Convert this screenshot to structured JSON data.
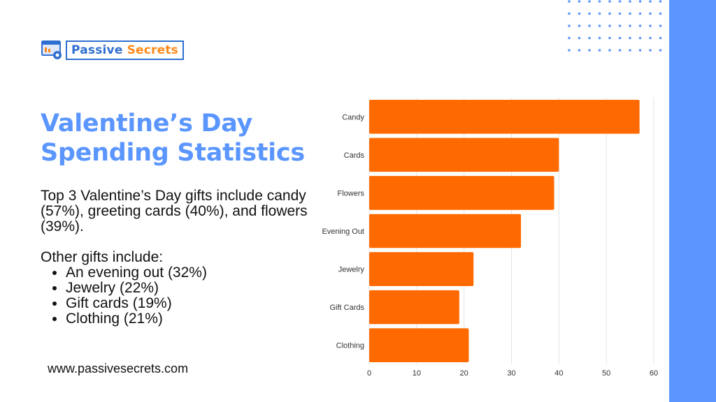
{
  "brand": {
    "name_part1": "Passive",
    "name_part2": "Secrets"
  },
  "title_line1": "Valentine’s Day",
  "title_line2": "Spending Statistics",
  "summary": "Top 3 Valentine’s Day gifts include candy (57%), greeting cards (40%), and flowers (39%).",
  "other_heading": "Other gifts include:",
  "other_items": [
    "An evening out (32%)",
    "Jewelry (22%)",
    "Gift cards (19%)",
    "Clothing (21%)"
  ],
  "footer": "www.passivesecrets.com",
  "colors": {
    "accent": "#5b96ff",
    "bar": "#ff6a00",
    "brand_blue": "#2f6fcf",
    "brand_orange": "#ff8a1a"
  },
  "chart_data": {
    "type": "bar",
    "orientation": "horizontal",
    "categories": [
      "Candy",
      "Cards",
      "Flowers",
      "Evening Out",
      "Jewelry",
      "Gift Cards",
      "Clothing"
    ],
    "values": [
      57,
      40,
      39,
      32,
      22,
      19,
      21
    ],
    "xlim": [
      0,
      60
    ],
    "xticks": [
      0,
      10,
      20,
      30,
      40,
      50,
      60
    ],
    "grid": true,
    "title": "",
    "xlabel": "",
    "ylabel": ""
  }
}
